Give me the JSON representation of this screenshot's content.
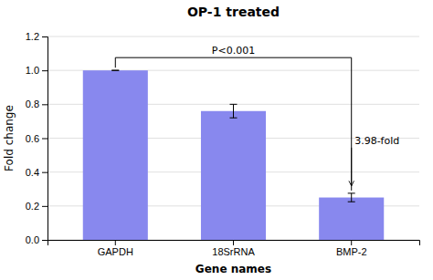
{
  "chart_data": {
    "type": "bar",
    "title": "OP-1 treated",
    "xlabel": "Gene names",
    "ylabel": "Fold change",
    "categories": [
      "GAPDH",
      "18SrRNA",
      "BMP-2"
    ],
    "values": [
      1.0,
      0.76,
      0.25
    ],
    "errors": [
      0.0,
      0.04,
      0.025
    ],
    "color": "#8888ee",
    "ylim": [
      0,
      1.2
    ],
    "yticks": [
      {
        "value": 0,
        "label": "0.0"
      },
      0.2,
      0.4,
      0.6,
      0.8,
      {
        "value": 1.0,
        "label": "1.0"
      },
      1.2
    ],
    "grid": true,
    "annotations": [
      "P<0.001",
      "3.98-fold"
    ]
  }
}
